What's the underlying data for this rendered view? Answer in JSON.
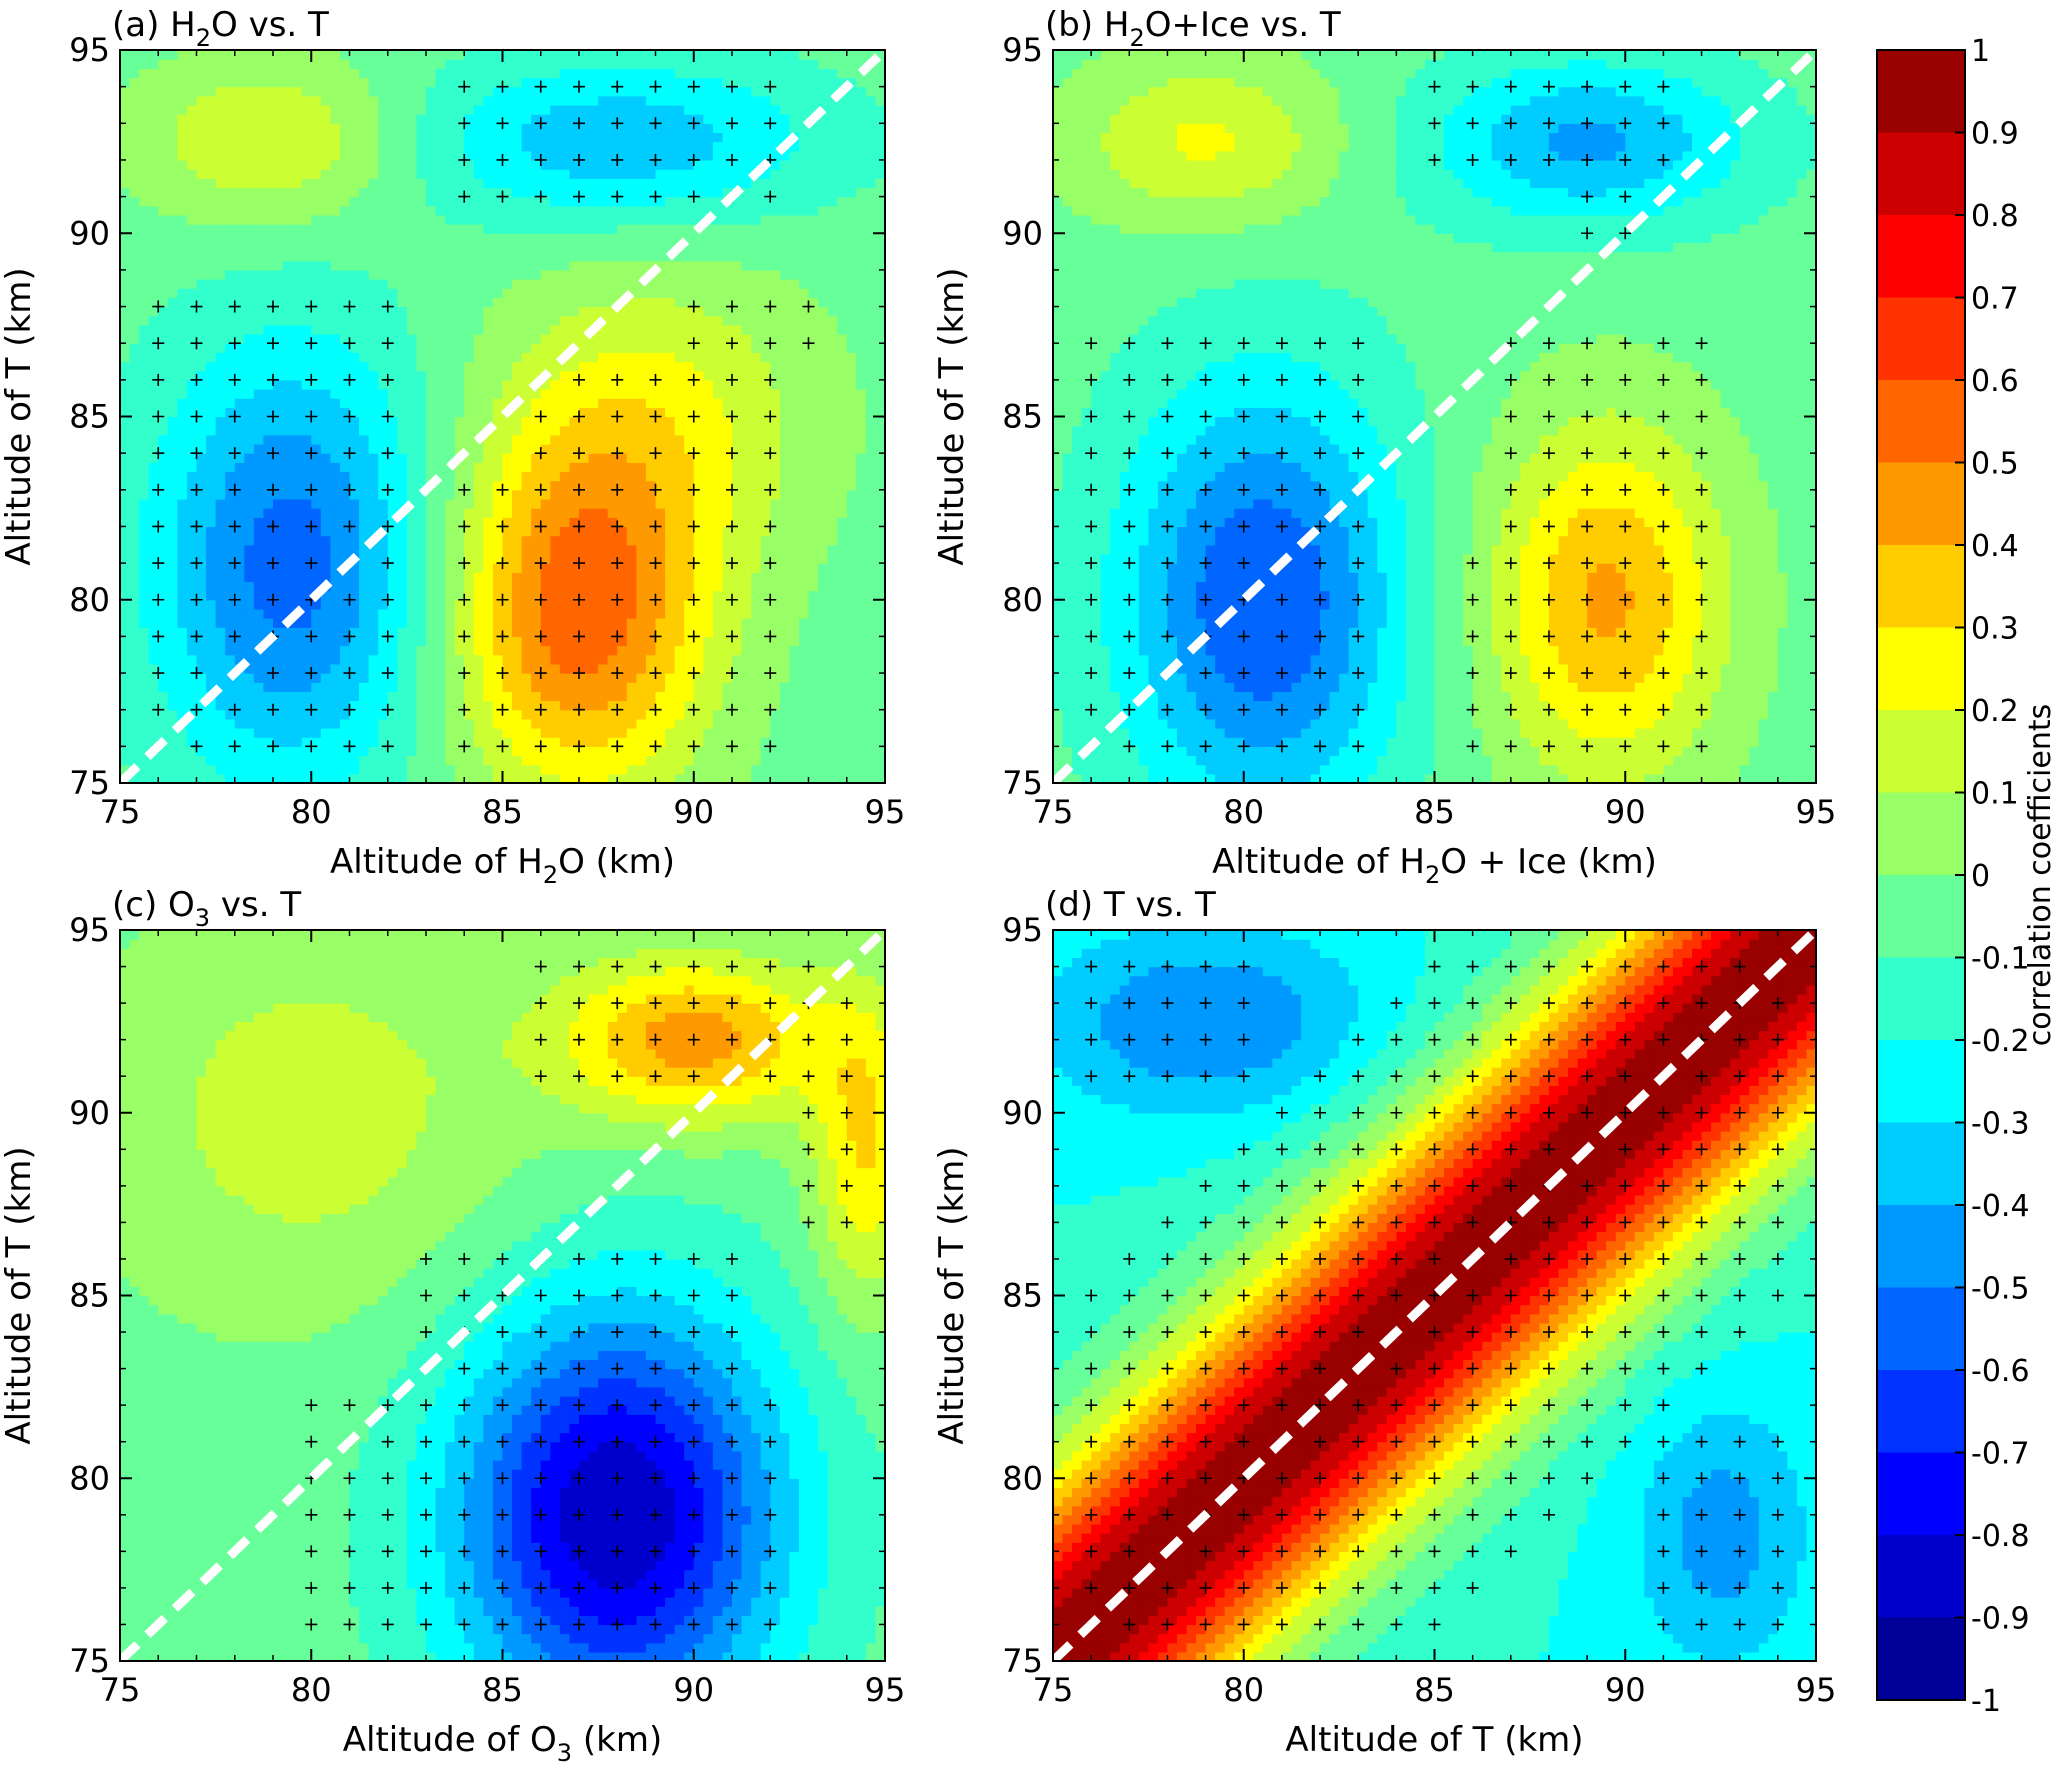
{
  "chart_data": [
    {
      "type": "heatmap",
      "panel_label": "(a) H",
      "title_sub": "2",
      "title_rest": "O vs. T",
      "xlabel_pre": "Altitude of H",
      "xlabel_sub": "2",
      "xlabel_post": "O (km)",
      "ylabel": "Altitude of T (km)",
      "xlim": [
        75,
        95
      ],
      "ylim": [
        75,
        95
      ],
      "xticks": [
        "75",
        "80",
        "85",
        "90",
        "95"
      ],
      "yticks": [
        "75",
        "80",
        "85",
        "90",
        "95"
      ],
      "diagonal_line": "dashed white",
      "features": [
        {
          "x": 79.5,
          "y": 81,
          "value": -0.55,
          "sx": 2.6,
          "sy": 4.2
        },
        {
          "x": 87,
          "y": 79.5,
          "value": 0.55,
          "sx": 2.4,
          "sy": 3.4
        },
        {
          "x": 89,
          "y": 85,
          "value": 0.2,
          "sx": 3,
          "sy": 3
        },
        {
          "x": 88,
          "y": 92.5,
          "value": -0.38,
          "sx": 3.8,
          "sy": 1.6
        },
        {
          "x": 79,
          "y": 92.5,
          "value": 0.22,
          "sx": 2.5,
          "sy": 1.6
        }
      ],
      "base": -0.05,
      "significant_regions": [
        {
          "x": [
            76,
            82
          ],
          "y": [
            76,
            88
          ]
        },
        {
          "x": [
            84,
            92
          ],
          "y": [
            76,
            83
          ]
        },
        {
          "x": [
            86,
            92
          ],
          "y": [
            84,
            86
          ]
        },
        {
          "x": [
            90,
            93
          ],
          "y": [
            87,
            88
          ]
        },
        {
          "x": [
            84,
            92
          ],
          "y": [
            91,
            94
          ]
        }
      ]
    },
    {
      "type": "heatmap",
      "panel_label": "(b) H",
      "title_sub": "2",
      "title_rest": "O+Ice vs. T",
      "xlabel_pre": "Altitude of H",
      "xlabel_sub": "2",
      "xlabel_post": "O + Ice (km)",
      "ylabel": "Altitude of T (km)",
      "xlim": [
        75,
        95
      ],
      "ylim": [
        75,
        95
      ],
      "xticks": [
        "75",
        "80",
        "85",
        "90",
        "95"
      ],
      "yticks": [
        "75",
        "80",
        "85",
        "90",
        "95"
      ],
      "diagonal_line": "dashed white",
      "features": [
        {
          "x": 80.5,
          "y": 80,
          "value": -0.6,
          "sx": 2.6,
          "sy": 4.2
        },
        {
          "x": 89.5,
          "y": 80,
          "value": 0.42,
          "sx": 2.2,
          "sy": 3.4
        },
        {
          "x": 89,
          "y": 92.5,
          "value": -0.42,
          "sx": 3,
          "sy": 1.6
        },
        {
          "x": 79,
          "y": 92.5,
          "value": 0.22,
          "sx": 2.5,
          "sy": 1.6
        }
      ],
      "base": -0.05,
      "significant_regions": [
        {
          "x": [
            76,
            83
          ],
          "y": [
            76,
            87
          ]
        },
        {
          "x": [
            86,
            92
          ],
          "y": [
            76,
            81
          ]
        },
        {
          "x": [
            87,
            92
          ],
          "y": [
            82,
            87
          ]
        },
        {
          "x": [
            85,
            91
          ],
          "y": [
            92,
            94
          ]
        },
        {
          "x": [
            89,
            90
          ],
          "y": [
            90,
            91
          ]
        }
      ]
    },
    {
      "type": "heatmap",
      "panel_label": "(c) O",
      "title_sub": "3",
      "title_rest": " vs. T",
      "xlabel_pre": "Altitude of O",
      "xlabel_sub": "3",
      "xlabel_post": " (km)",
      "ylabel": "Altitude of T (km)",
      "xlim": [
        75,
        95
      ],
      "ylim": [
        75,
        95
      ],
      "xticks": [
        "75",
        "80",
        "85",
        "90",
        "95"
      ],
      "yticks": [
        "75",
        "80",
        "85",
        "90",
        "95"
      ],
      "diagonal_line": "dashed white",
      "features": [
        {
          "x": 88,
          "y": 79,
          "value": -0.9,
          "sx": 3,
          "sy": 4
        },
        {
          "x": 90,
          "y": 92,
          "value": 0.45,
          "sx": 2.5,
          "sy": 1.6
        },
        {
          "x": 94.5,
          "y": 89,
          "value": 0.3,
          "sx": 1,
          "sy": 3
        },
        {
          "x": 80,
          "y": 90,
          "value": 0.15,
          "sx": 4,
          "sy": 4
        }
      ],
      "base": -0.05,
      "significant_regions": [
        {
          "x": [
            80,
            92
          ],
          "y": [
            76,
            82
          ]
        },
        {
          "x": [
            83,
            91
          ],
          "y": [
            83,
            86
          ]
        },
        {
          "x": [
            86,
            94
          ],
          "y": [
            91,
            94
          ]
        },
        {
          "x": [
            93,
            94
          ],
          "y": [
            87,
            90
          ]
        }
      ]
    },
    {
      "type": "heatmap",
      "panel_label": "(d) T vs. T",
      "title_sub": "",
      "title_rest": "",
      "xlabel_pre": "Altitude of T (km)",
      "xlabel_sub": "",
      "xlabel_post": "",
      "ylabel": "Altitude of T (km)",
      "xlim": [
        75,
        95
      ],
      "ylim": [
        75,
        95
      ],
      "xticks": [
        "75",
        "80",
        "85",
        "90",
        "95"
      ],
      "yticks": [
        "75",
        "80",
        "85",
        "90",
        "95"
      ],
      "diagonal_line": "dashed white",
      "diagonal_ridge": {
        "peak": 1.0,
        "width": 3.5
      },
      "features": [
        {
          "x": 79,
          "y": 92.5,
          "value": -0.5,
          "sx": 3,
          "sy": 1.8
        },
        {
          "x": 92.5,
          "y": 78.5,
          "value": -0.45,
          "sx": 1.6,
          "sy": 2.6
        }
      ],
      "base": -0.2,
      "significant_regions": [
        {
          "x": [
            76,
            94
          ],
          "y": [
            76,
            94
          ],
          "diagonal_band": 9
        },
        {
          "x": [
            76,
            80
          ],
          "y": [
            91,
            94
          ]
        },
        {
          "x": [
            91,
            94
          ],
          "y": [
            76,
            81
          ]
        }
      ]
    }
  ],
  "colorbar": {
    "label": "correlation coefficients",
    "range": [
      -1,
      1
    ],
    "ticks": [
      "1",
      "0.9",
      "0.8",
      "0.7",
      "0.6",
      "0.5",
      "0.4",
      "0.3",
      "0.2",
      "0.1",
      "0",
      "-0.1",
      "-0.2",
      "-0.3",
      "-0.4",
      "-0.5",
      "-0.6",
      "-0.7",
      "-0.8",
      "-0.9",
      "-1"
    ],
    "colors": [
      "#00007f",
      "#0000ff",
      "#007fff",
      "#00ffff",
      "#7fff7f",
      "#ffff00",
      "#ff7f00",
      "#ff0000",
      "#7f0000"
    ]
  }
}
